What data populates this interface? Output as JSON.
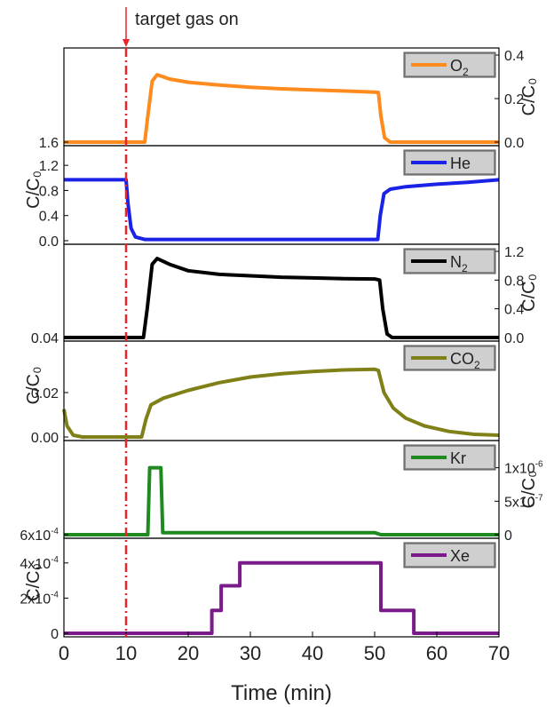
{
  "chart_data": {
    "type": "line",
    "x_axis": {
      "label": "Time (min)",
      "range": [
        0,
        70
      ],
      "ticks": [
        0,
        10,
        20,
        30,
        40,
        50,
        60,
        70
      ]
    },
    "annotation": {
      "text": "target gas on",
      "x": 10,
      "color": "#e8232a"
    },
    "panels": [
      {
        "series": "O₂",
        "sub": "2",
        "base": "O",
        "color": "#ff8a1e",
        "axis_side": "right",
        "ylabel": "C/C₀",
        "ylim": [
          0,
          0.4
        ],
        "right_ticks": [
          {
            "v": 0,
            "t": "0.0"
          },
          {
            "v": 0.2,
            "t": "0.2"
          },
          {
            "v": 0.4,
            "t": "0.4"
          }
        ],
        "left_ticks": [
          {
            "v": 0,
            "t": "1.6"
          }
        ],
        "points": [
          [
            0,
            0
          ],
          [
            13.0,
            0
          ],
          [
            13.5,
            0.12
          ],
          [
            14.2,
            0.28
          ],
          [
            15,
            0.31
          ],
          [
            17,
            0.29
          ],
          [
            20,
            0.275
          ],
          [
            25,
            0.262
          ],
          [
            30,
            0.252
          ],
          [
            35,
            0.245
          ],
          [
            40,
            0.24
          ],
          [
            45,
            0.235
          ],
          [
            50,
            0.23
          ],
          [
            50.6,
            0.228
          ],
          [
            51,
            0.12
          ],
          [
            51.6,
            0.02
          ],
          [
            52.5,
            0
          ],
          [
            70,
            0
          ]
        ]
      },
      {
        "series": "He",
        "sub": "",
        "base": "He",
        "color": "#1a22e6",
        "axis_side": "left",
        "ylabel": "C/C₀",
        "ylim": [
          0,
          1.4
        ],
        "left_ticks": [
          {
            "v": 0,
            "t": "0.0"
          },
          {
            "v": 0.4,
            "t": "0.4"
          },
          {
            "v": 0.8,
            "t": "0.8"
          },
          {
            "v": 1.2,
            "t": "1.2"
          }
        ],
        "right_ticks": [],
        "points": [
          [
            0,
            0.97
          ],
          [
            10,
            0.97
          ],
          [
            10.3,
            0.6
          ],
          [
            10.8,
            0.2
          ],
          [
            11.5,
            0.06
          ],
          [
            13,
            0.02
          ],
          [
            50.5,
            0.02
          ],
          [
            50.9,
            0.4
          ],
          [
            51.5,
            0.75
          ],
          [
            52.5,
            0.82
          ],
          [
            55,
            0.86
          ],
          [
            60,
            0.9
          ],
          [
            65,
            0.93
          ],
          [
            70,
            0.97
          ]
        ]
      },
      {
        "series": "N₂",
        "sub": "2",
        "base": "N",
        "color": "#000000",
        "axis_side": "right",
        "ylabel": "C/C₀",
        "ylim": [
          0,
          1.2
        ],
        "right_ticks": [
          {
            "v": 0,
            "t": "0.0"
          },
          {
            "v": 0.4,
            "t": "0.4"
          },
          {
            "v": 0.8,
            "t": "0.8"
          },
          {
            "v": 1.2,
            "t": "1.2"
          }
        ],
        "left_ticks": [
          {
            "v": 0,
            "t": "0.04"
          }
        ],
        "points": [
          [
            0,
            0
          ],
          [
            12.8,
            0
          ],
          [
            13.4,
            0.4
          ],
          [
            14.2,
            1.02
          ],
          [
            15,
            1.1
          ],
          [
            17,
            1.02
          ],
          [
            20,
            0.93
          ],
          [
            25,
            0.88
          ],
          [
            30,
            0.86
          ],
          [
            35,
            0.84
          ],
          [
            40,
            0.83
          ],
          [
            45,
            0.82
          ],
          [
            50,
            0.815
          ],
          [
            50.8,
            0.8
          ],
          [
            51.3,
            0.4
          ],
          [
            52,
            0.05
          ],
          [
            52.8,
            0
          ],
          [
            70,
            0
          ]
        ]
      },
      {
        "series": "CO₂",
        "sub": "2",
        "base": "CO",
        "color": "#808018",
        "axis_side": "left",
        "ylabel": "C/C₀",
        "ylim": [
          0,
          0.04
        ],
        "left_ticks": [
          {
            "v": 0,
            "t": "0.00"
          },
          {
            "v": 0.02,
            "t": "0.02"
          }
        ],
        "right_ticks": [],
        "points": [
          [
            0,
            0.0125
          ],
          [
            0.5,
            0.005
          ],
          [
            1.5,
            0.0008
          ],
          [
            3,
            0
          ],
          [
            12.5,
            0
          ],
          [
            13.2,
            0.008
          ],
          [
            14,
            0.0145
          ],
          [
            16,
            0.0175
          ],
          [
            20,
            0.021
          ],
          [
            25,
            0.0245
          ],
          [
            30,
            0.027
          ],
          [
            35,
            0.0285
          ],
          [
            40,
            0.0295
          ],
          [
            45,
            0.0302
          ],
          [
            50,
            0.0305
          ],
          [
            50.6,
            0.03
          ],
          [
            51.5,
            0.02
          ],
          [
            53,
            0.013
          ],
          [
            55,
            0.0085
          ],
          [
            58,
            0.005
          ],
          [
            62,
            0.0025
          ],
          [
            66,
            0.0012
          ],
          [
            70,
            0.0008
          ]
        ]
      },
      {
        "series": "Kr",
        "sub": "",
        "base": "Kr",
        "color": "#1f8a1f",
        "axis_side": "right",
        "ylabel": "C/C₀",
        "ylim": [
          0,
          1.3e-06
        ],
        "right_ticks": [
          {
            "v": 0,
            "t": "0",
            "sup": ""
          },
          {
            "v": 5e-07,
            "t": "5x10",
            "sup": "-7"
          },
          {
            "v": 1e-06,
            "t": "1x10",
            "sup": "-6"
          }
        ],
        "left_ticks": [
          {
            "v": 0,
            "t": "6x10",
            "sup": "-4"
          }
        ],
        "points": [
          [
            0,
            0
          ],
          [
            13.5,
            0
          ],
          [
            13.8,
            1e-06
          ],
          [
            15.6,
            1e-06
          ],
          [
            15.9,
            3e-08
          ],
          [
            50,
            3e-08
          ],
          [
            51,
            0
          ],
          [
            70,
            0
          ]
        ]
      },
      {
        "series": "Xe",
        "sub": "",
        "base": "Xe",
        "color": "#7b1a8a",
        "axis_side": "left",
        "ylabel": "C/C₀",
        "ylim": [
          0,
          0.0005
        ],
        "left_ticks": [
          {
            "v": 0,
            "t": "0",
            "sup": ""
          },
          {
            "v": 0.0002,
            "t": "2x10",
            "sup": "-4"
          },
          {
            "v": 0.0004,
            "t": "4x10",
            "sup": "-4"
          }
        ],
        "right_ticks": [],
        "points": [
          [
            0,
            0
          ],
          [
            23.8,
            0
          ],
          [
            23.8,
            0.00013
          ],
          [
            25.3,
            0.00013
          ],
          [
            25.3,
            0.00027
          ],
          [
            28.3,
            0.00027
          ],
          [
            28.3,
            0.0004
          ],
          [
            51,
            0.0004
          ],
          [
            51,
            0.00013
          ],
          [
            56.3,
            0.00013
          ],
          [
            56.3,
            0
          ],
          [
            70,
            0
          ]
        ]
      }
    ]
  }
}
